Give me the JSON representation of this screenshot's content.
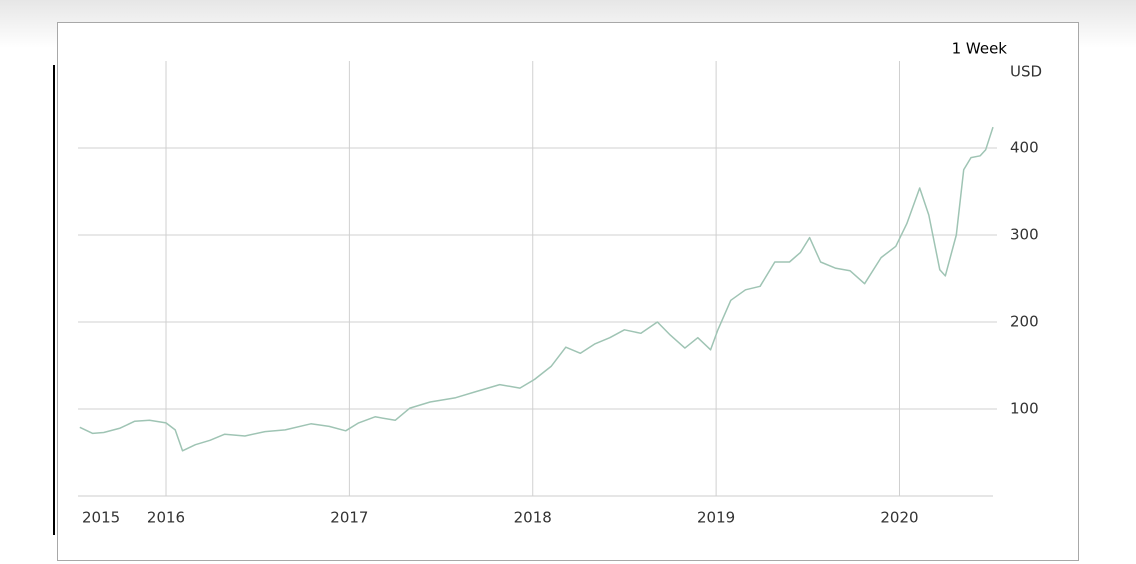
{
  "chart_data": {
    "type": "line",
    "period_label": "1 Week",
    "unit_label": "USD",
    "x_start_label": "2015",
    "x": [
      2015.53,
      2015.6,
      2015.66,
      2015.75,
      2015.83,
      2015.91,
      2016.0,
      2016.05,
      2016.09,
      2016.16,
      2016.24,
      2016.32,
      2016.43,
      2016.54,
      2016.65,
      2016.79,
      2016.89,
      2016.98,
      2017.05,
      2017.14,
      2017.25,
      2017.33,
      2017.44,
      2017.58,
      2017.69,
      2017.82,
      2017.93,
      2018.01,
      2018.1,
      2018.18,
      2018.26,
      2018.34,
      2018.42,
      2018.5,
      2018.59,
      2018.68,
      2018.75,
      2018.83,
      2018.9,
      2018.97,
      2019.01,
      2019.08,
      2019.16,
      2019.24,
      2019.32,
      2019.4,
      2019.46,
      2019.51,
      2019.57,
      2019.65,
      2019.73,
      2019.81,
      2019.9,
      2019.98,
      2020.04,
      2020.11,
      2020.16,
      2020.22,
      2020.25,
      2020.31,
      2020.35,
      2020.39,
      2020.44,
      2020.47,
      2020.51
    ],
    "series": [
      {
        "color": "#9fc4b4",
        "values": [
          79,
          72,
          73,
          78,
          86,
          87,
          84,
          76,
          52,
          59,
          64,
          71,
          69,
          74,
          76,
          83,
          80,
          75,
          84,
          91,
          87,
          101,
          108,
          113,
          120,
          128,
          124,
          134,
          149,
          171,
          164,
          175,
          182,
          191,
          187,
          200,
          185,
          170,
          182,
          168,
          191,
          225,
          237,
          241,
          269,
          269,
          280,
          297,
          269,
          262,
          259,
          244,
          274,
          287,
          313,
          354,
          323,
          260,
          253,
          300,
          375,
          389,
          391,
          398,
          424
        ]
      }
    ],
    "xlim": [
      2015.52,
      2020.51
    ],
    "xticks": [
      2016,
      2017,
      2018,
      2019,
      2020
    ],
    "ylim": [
      0,
      500
    ],
    "yticks": [
      100,
      200,
      300,
      400
    ],
    "grid": true
  }
}
